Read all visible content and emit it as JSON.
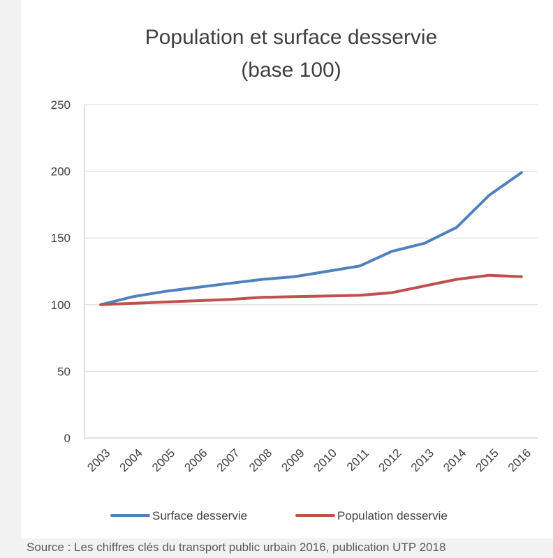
{
  "chart_data": {
    "type": "line",
    "title_lines": [
      "Population et surface desservie",
      "(base 100)"
    ],
    "categories": [
      "2003",
      "2004",
      "2005",
      "2006",
      "2007",
      "2008",
      "2009",
      "2010",
      "2011",
      "2012",
      "2013",
      "2014",
      "2015",
      "2016"
    ],
    "series": [
      {
        "name": "Surface desservie",
        "color": "#4f81bd",
        "values": [
          100,
          106,
          110,
          113,
          116,
          119,
          121,
          125,
          129,
          140,
          146,
          158,
          182,
          199
        ]
      },
      {
        "name": "Population desservie",
        "color": "#c0504d",
        "values": [
          100,
          101,
          102,
          103,
          104,
          105.5,
          106,
          106.5,
          107,
          109,
          114,
          119,
          122,
          121
        ]
      }
    ],
    "ylim": [
      0,
      250
    ],
    "yticks": [
      "0",
      "50",
      "100",
      "150",
      "200",
      "250"
    ],
    "grid": true,
    "legend_position": "bottom",
    "xlabel": "",
    "ylabel": ""
  },
  "source_note": "Source : Les chiffres clés du transport public urbain 2016, publication UTP 2018"
}
